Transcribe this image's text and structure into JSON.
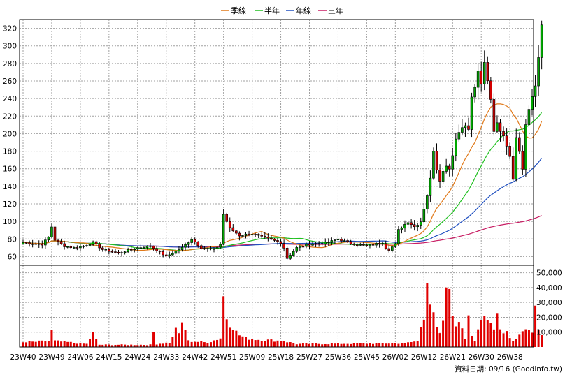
{
  "colors": {
    "up_candle": "#00a800",
    "down_candle": "#d40000",
    "volume_bar": "#e00000",
    "grid": "#a0a0a0",
    "ma_quarter": "#e07818",
    "ma_half": "#20c020",
    "ma_year": "#2050c0",
    "ma_3year": "#c81e64"
  },
  "legend": [
    {
      "label": "季線",
      "color": "#e07818"
    },
    {
      "label": "半年",
      "color": "#20c020"
    },
    {
      "label": "年線",
      "color": "#2050c0"
    },
    {
      "label": "三年",
      "color": "#c81e64"
    }
  ],
  "source": "資料日期: 09/16 (Goodinfo.tw)",
  "chart_data": {
    "type": "candlestick_with_volume",
    "price_axis": {
      "min": 50,
      "max": 330,
      "ticks": [
        60,
        80,
        100,
        120,
        140,
        160,
        180,
        200,
        220,
        240,
        260,
        280,
        300,
        320
      ]
    },
    "volume_axis": {
      "min": 0,
      "max": 55000,
      "ticks": [
        "10,000",
        "20,000",
        "30,000",
        "40,000",
        "50,000"
      ],
      "tick_values": [
        10000,
        20000,
        30000,
        40000,
        50000
      ]
    },
    "x_labels": [
      "23W40",
      "23W49",
      "24W06",
      "24W15",
      "24W24",
      "24W33",
      "24W42",
      "24W51",
      "25W09",
      "25W18",
      "25W27",
      "25W36",
      "25W45",
      "26W02",
      "26W12",
      "26W21",
      "26W30",
      "26W38"
    ],
    "weeks_per_label": 9,
    "grid": true,
    "legend_position": "top-center",
    "close_keyframes": [
      [
        0,
        76
      ],
      [
        6,
        74
      ],
      [
        8,
        82
      ],
      [
        9,
        94
      ],
      [
        10,
        79
      ],
      [
        13,
        72
      ],
      [
        16,
        70
      ],
      [
        19,
        72
      ],
      [
        22,
        76
      ],
      [
        25,
        68
      ],
      [
        30,
        64
      ],
      [
        36,
        70
      ],
      [
        40,
        72
      ],
      [
        45,
        60
      ],
      [
        50,
        70
      ],
      [
        53,
        80
      ],
      [
        56,
        70
      ],
      [
        60,
        68
      ],
      [
        62,
        74
      ],
      [
        63,
        108
      ],
      [
        65,
        92
      ],
      [
        68,
        84
      ],
      [
        72,
        86
      ],
      [
        75,
        82
      ],
      [
        79,
        78
      ],
      [
        81,
        76
      ],
      [
        82,
        70
      ],
      [
        83,
        58
      ],
      [
        86,
        70
      ],
      [
        90,
        74
      ],
      [
        96,
        76
      ],
      [
        99,
        80
      ],
      [
        103,
        75
      ],
      [
        108,
        72
      ],
      [
        113,
        76
      ],
      [
        114,
        70
      ],
      [
        115,
        68
      ],
      [
        117,
        74
      ],
      [
        118,
        90
      ],
      [
        121,
        100
      ],
      [
        123,
        94
      ],
      [
        125,
        100
      ],
      [
        127,
        130
      ],
      [
        128,
        148
      ],
      [
        129,
        182
      ],
      [
        130,
        160
      ],
      [
        131,
        148
      ],
      [
        133,
        165
      ],
      [
        134,
        160
      ],
      [
        136,
        194
      ],
      [
        138,
        210
      ],
      [
        140,
        205
      ],
      [
        141,
        240
      ],
      [
        143,
        268
      ],
      [
        144,
        255
      ],
      [
        145,
        280
      ],
      [
        146,
        262
      ],
      [
        147,
        240
      ],
      [
        148,
        205
      ],
      [
        149,
        210
      ],
      [
        151,
        200
      ],
      [
        153,
        175
      ],
      [
        154,
        150
      ],
      [
        155,
        195
      ],
      [
        156,
        180
      ],
      [
        157,
        160
      ],
      [
        158,
        210
      ],
      [
        159,
        225
      ],
      [
        160,
        242
      ],
      [
        161,
        255
      ],
      [
        162,
        290
      ],
      [
        163,
        320
      ]
    ],
    "volume_keyframes": [
      [
        0,
        3
      ],
      [
        8,
        4
      ],
      [
        9,
        10.5
      ],
      [
        10,
        4
      ],
      [
        20,
        2
      ],
      [
        22,
        9
      ],
      [
        23,
        5
      ],
      [
        24,
        1.5
      ],
      [
        40,
        1.5
      ],
      [
        41,
        10
      ],
      [
        42,
        2
      ],
      [
        46,
        3
      ],
      [
        47,
        6
      ],
      [
        48,
        14
      ],
      [
        49,
        8
      ],
      [
        50,
        16
      ],
      [
        51,
        12
      ],
      [
        52,
        4
      ],
      [
        58,
        3
      ],
      [
        62,
        6
      ],
      [
        63,
        34
      ],
      [
        64,
        20
      ],
      [
        65,
        16
      ],
      [
        66,
        14
      ],
      [
        67,
        10
      ],
      [
        68,
        8
      ],
      [
        70,
        6
      ],
      [
        74,
        5
      ],
      [
        82,
        4
      ],
      [
        84,
        3
      ],
      [
        86,
        2
      ],
      [
        120,
        2.5
      ],
      [
        124,
        4
      ],
      [
        125,
        14
      ],
      [
        126,
        22
      ],
      [
        127,
        50
      ],
      [
        128,
        30
      ],
      [
        129,
        20
      ],
      [
        130,
        12
      ],
      [
        131,
        8
      ],
      [
        132,
        18
      ],
      [
        133,
        35
      ],
      [
        134,
        40
      ],
      [
        135,
        25
      ],
      [
        136,
        12
      ],
      [
        137,
        18
      ],
      [
        138,
        14
      ],
      [
        139,
        6
      ],
      [
        140,
        26
      ],
      [
        141,
        8
      ],
      [
        142,
        4
      ],
      [
        144,
        16
      ],
      [
        145,
        20
      ],
      [
        146,
        18
      ],
      [
        147,
        20
      ],
      [
        148,
        12
      ],
      [
        149,
        26
      ],
      [
        150,
        12
      ],
      [
        151,
        10
      ],
      [
        152,
        12
      ],
      [
        153,
        6
      ],
      [
        154,
        4
      ],
      [
        155,
        6
      ],
      [
        156,
        8
      ],
      [
        157,
        10
      ],
      [
        158,
        12
      ],
      [
        159,
        14
      ],
      [
        160,
        12
      ],
      [
        161,
        28
      ],
      [
        162,
        12
      ],
      [
        163,
        10
      ]
    ],
    "ma_windows": {
      "ma_quarter": 13,
      "ma_half": 26,
      "ma_year": 52,
      "ma_3year": 156
    }
  }
}
